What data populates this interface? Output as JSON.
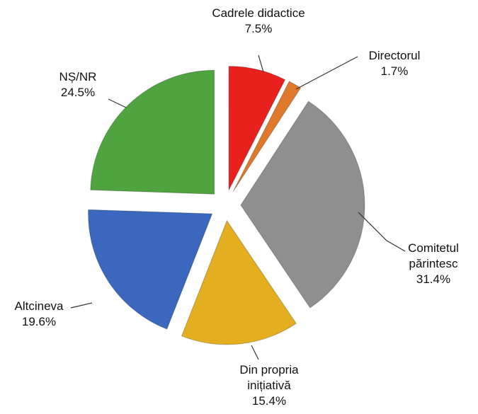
{
  "chart_data": {
    "type": "pie",
    "categories": [
      "Cadrele didactice",
      "Directorul",
      "Comitetul părintesc",
      "Din propria inițiativă",
      "Altcineva",
      "NȘ/NR"
    ],
    "values": [
      7.5,
      1.7,
      31.4,
      15.4,
      19.6,
      24.5
    ],
    "value_labels": [
      "7.5%",
      "1.7%",
      "31.4%",
      "15.4%",
      "19.6%",
      "24.5%"
    ],
    "colors": [
      "#e8211f",
      "#e0782b",
      "#8f8f8f",
      "#e3ae1f",
      "#3b68be",
      "#4fa43f"
    ]
  }
}
